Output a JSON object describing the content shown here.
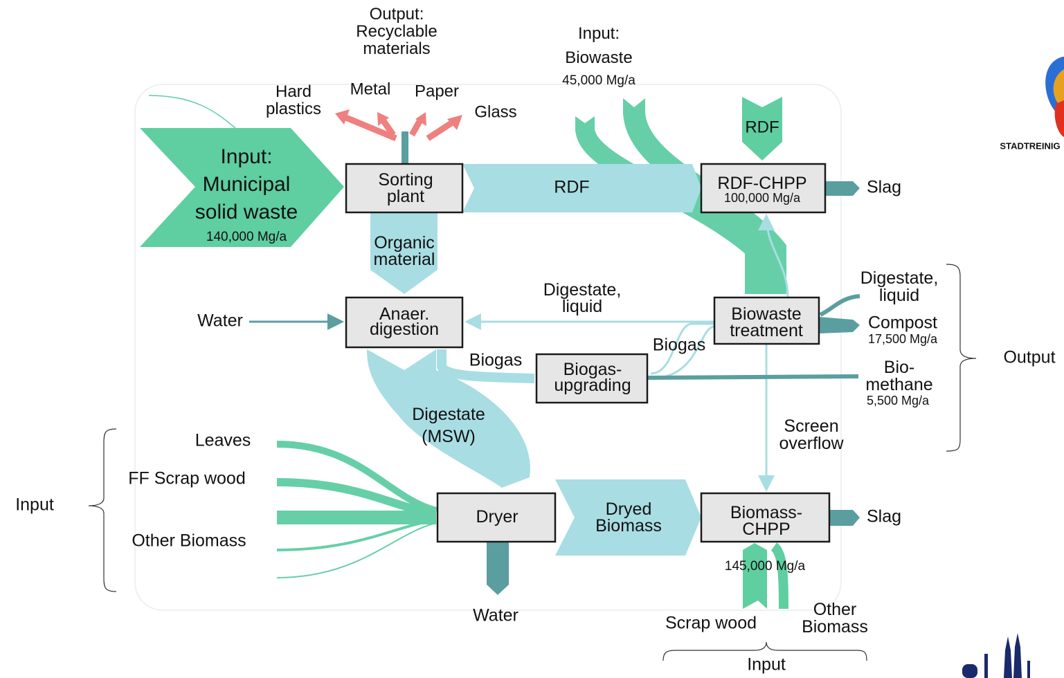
{
  "logo": "STADTREINIG",
  "recyclables": {
    "heading": [
      "Output:",
      "Recyclable",
      "materials"
    ],
    "items": [
      [
        "Hard",
        "plastics"
      ],
      "Metal",
      "Paper",
      "Glass"
    ]
  },
  "inputs": {
    "msw": {
      "label": [
        "Input:",
        "Municipal",
        "solid waste"
      ],
      "amount": "140,000 Mg/a"
    },
    "biowaste": {
      "label": [
        "Input:",
        "Biowaste"
      ],
      "amount": "45,000 Mg/a"
    },
    "rdf": "RDF",
    "water": "Water",
    "left": {
      "items": [
        "Leaves",
        "FF Scrap wood",
        "Other Biomass"
      ],
      "label": "Input"
    },
    "bottom": {
      "amount": "145,000 Mg/a",
      "items": [
        "Scrap wood",
        [
          "Other",
          "Biomass"
        ]
      ],
      "label": "Input"
    }
  },
  "nodes": [
    {
      "label": [
        "Sorting",
        "plant"
      ]
    },
    {
      "label": [
        "RDF-CHPP"
      ],
      "amount": "100,000 Mg/a"
    },
    {
      "label": [
        "Anaer.",
        "digestion"
      ]
    },
    {
      "label": [
        "Biowaste",
        "treatment"
      ]
    },
    {
      "label": [
        "Biogas-",
        "upgrading"
      ]
    },
    {
      "label": [
        "Dryer"
      ]
    },
    {
      "label": [
        "Biomass-",
        "CHPP"
      ]
    }
  ],
  "flows": {
    "rdf": "RDF",
    "organic": [
      "Organic",
      "material"
    ],
    "digestate_liquid": [
      "Digestate,",
      "liquid"
    ],
    "biogas_a": "Biogas",
    "biogas_b": "Biogas",
    "digestate_msw": [
      "Digestate",
      "(MSW)"
    ],
    "dryed": [
      "Dryed",
      "Biomass"
    ],
    "screen": [
      "Screen",
      "overflow"
    ]
  },
  "outputs": {
    "slag_rdf": "Slag",
    "slag_biomass": "Slag",
    "water": "Water",
    "digestate_liquid": [
      "Digestate,",
      "liquid"
    ],
    "compost": {
      "label": "Compost",
      "amount": "17,500 Mg/a"
    },
    "biomethane": {
      "label": [
        "Bio-",
        "methane"
      ],
      "amount": "5,500 Mg/a"
    },
    "label": "Output"
  }
}
